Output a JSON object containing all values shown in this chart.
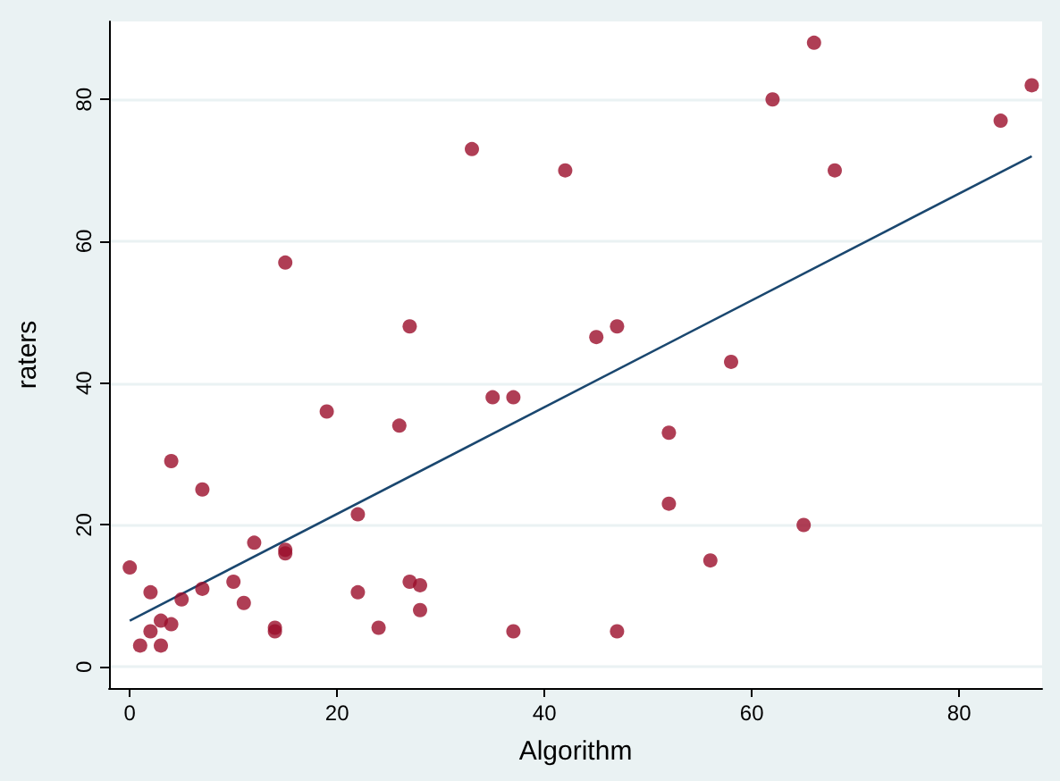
{
  "chart_data": {
    "type": "scatter",
    "xlabel": "Algorithm",
    "ylabel": "raters",
    "xlim": [
      -2,
      88
    ],
    "xticks": [
      0,
      20,
      40,
      60,
      80
    ],
    "ylim": [
      -3,
      91
    ],
    "yticks": [
      0,
      20,
      40,
      60,
      80
    ],
    "grid": "y",
    "marker": "circle",
    "series": [
      {
        "type": "scatter",
        "color": "#9b0e2a",
        "x": [
          0,
          1,
          2,
          2,
          3,
          3,
          4,
          4,
          5,
          7,
          7,
          10,
          11,
          12,
          14,
          14,
          15,
          15,
          15,
          19,
          22,
          22,
          24,
          26,
          27,
          27,
          28,
          28,
          33,
          35,
          37,
          37,
          42,
          45,
          47,
          47,
          52,
          52,
          56,
          58,
          62,
          65,
          66,
          68,
          84,
          87
        ],
        "values": [
          14,
          3,
          10.5,
          5,
          6.5,
          3,
          6,
          29,
          9.5,
          11,
          25,
          12,
          9,
          17.5,
          5.5,
          5,
          16,
          16.5,
          57,
          36,
          21.5,
          10.5,
          5.5,
          34,
          48,
          12,
          11.5,
          8,
          73,
          38,
          38,
          5,
          70,
          46.5,
          48,
          5,
          33,
          23,
          15,
          43,
          80,
          20,
          88,
          70,
          77,
          82
        ]
      },
      {
        "type": "line",
        "color": "#1a476f",
        "x": [
          0,
          87
        ],
        "values": [
          6.5,
          72
        ],
        "marker": "none"
      }
    ]
  }
}
